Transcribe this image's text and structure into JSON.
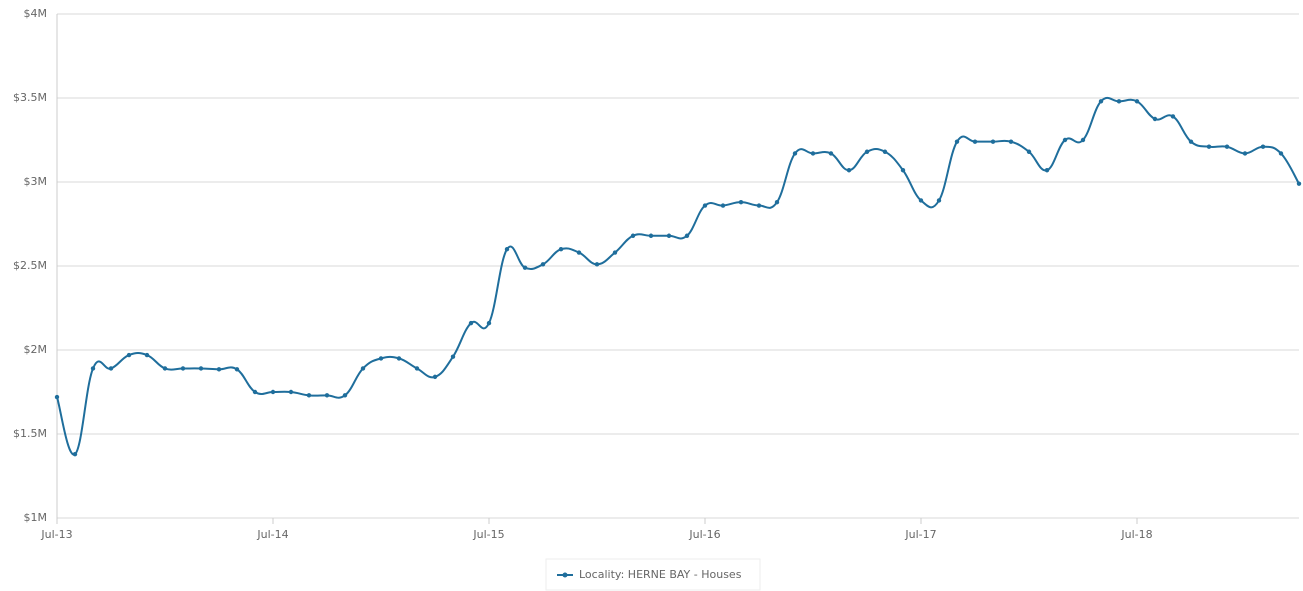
{
  "chart_data": {
    "type": "line",
    "categories": [
      "Jul-13",
      null,
      null,
      null,
      null,
      null,
      null,
      null,
      null,
      null,
      null,
      null,
      "Jul-14",
      null,
      null,
      null,
      null,
      null,
      null,
      null,
      null,
      null,
      null,
      null,
      "Jul-15",
      null,
      null,
      null,
      null,
      null,
      null,
      null,
      null,
      null,
      null,
      null,
      "Jul-16",
      null,
      null,
      null,
      null,
      null,
      null,
      null,
      null,
      null,
      null,
      null,
      "Jul-17",
      null,
      null,
      null,
      null,
      null,
      null,
      null,
      null,
      null,
      null,
      null,
      "Jul-18",
      null,
      null,
      null,
      null,
      null,
      null,
      null,
      null,
      null
    ],
    "series": [
      {
        "name": "Locality: HERNE BAY - Houses",
        "color": "#1f6e9c",
        "values": [
          1.72,
          1.38,
          1.89,
          1.89,
          1.97,
          1.97,
          1.89,
          1.89,
          1.89,
          1.885,
          1.885,
          1.75,
          1.75,
          1.75,
          1.73,
          1.73,
          1.73,
          1.89,
          1.95,
          1.95,
          1.89,
          1.84,
          1.96,
          2.16,
          2.16,
          2.6,
          2.49,
          2.51,
          2.6,
          2.58,
          2.51,
          2.58,
          2.68,
          2.68,
          2.68,
          2.68,
          2.86,
          2.86,
          2.88,
          2.86,
          2.88,
          3.17,
          3.17,
          3.17,
          3.07,
          3.18,
          3.18,
          3.07,
          2.89,
          2.89,
          3.24,
          3.24,
          3.24,
          3.24,
          3.18,
          3.07,
          3.25,
          3.25,
          3.48,
          3.48,
          3.48,
          3.375,
          3.39,
          3.24,
          3.21,
          3.21,
          3.17,
          3.21,
          3.17,
          2.99
        ]
      }
    ],
    "ylim": [
      1,
      4
    ],
    "yticks": [
      {
        "value": 1,
        "label": "$1M"
      },
      {
        "value": 1.5,
        "label": "$1.5M"
      },
      {
        "value": 2,
        "label": "$2M"
      },
      {
        "value": 2.5,
        "label": "$2.5M"
      },
      {
        "value": 3,
        "label": "$3M"
      },
      {
        "value": 3.5,
        "label": "$3.5M"
      },
      {
        "value": 4,
        "label": "$4M"
      }
    ],
    "grid": true
  }
}
